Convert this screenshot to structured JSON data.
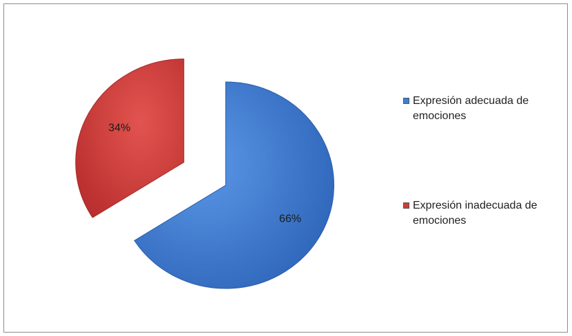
{
  "chart_data": {
    "type": "pie",
    "exploded": true,
    "categories": [
      "Expresión adecuada de emociones",
      "Expresión inadecuada de emociones"
    ],
    "values": [
      66,
      34
    ],
    "value_labels": [
      "66%",
      "34%"
    ],
    "colors": [
      "#3f7ed6",
      "#d13b39"
    ],
    "legend_placement": "right",
    "title": ""
  }
}
